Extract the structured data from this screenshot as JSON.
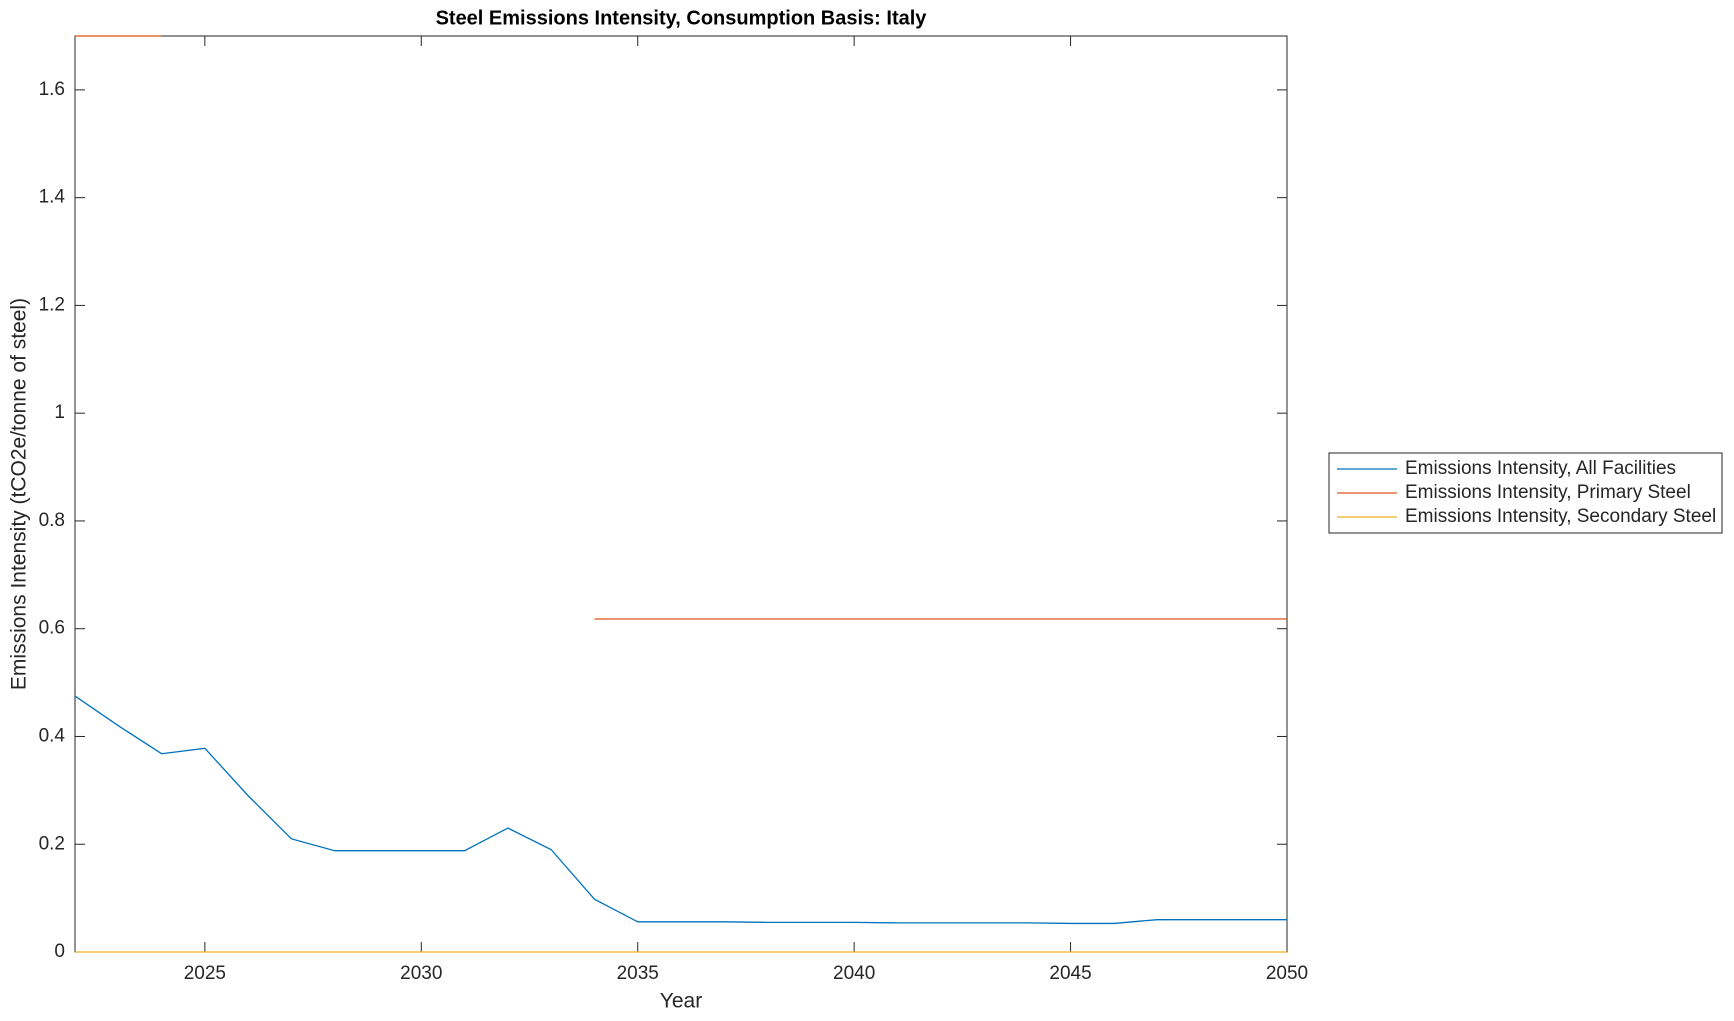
{
  "chart_data": {
    "type": "line",
    "title": "Steel Emissions Intensity, Consumption Basis: Italy",
    "x_label": "Year",
    "y_label": "Emissions Intensity (tCO2e/tonne of steel)",
    "x": [
      2022,
      2023,
      2024,
      2025,
      2026,
      2027,
      2028,
      2029,
      2030,
      2031,
      2032,
      2033,
      2034,
      2035,
      2036,
      2037,
      2038,
      2039,
      2040,
      2041,
      2042,
      2043,
      2044,
      2045,
      2046,
      2047,
      2048,
      2049,
      2050
    ],
    "series": [
      {
        "name": "Emissions Intensity, All Facilities",
        "color": "#0072BD",
        "values": [
          0.475,
          0.42,
          0.368,
          0.378,
          0.29,
          0.21,
          0.188,
          0.188,
          0.188,
          0.188,
          0.23,
          0.19,
          0.098,
          0.056,
          0.056,
          0.056,
          0.055,
          0.055,
          0.055,
          0.054,
          0.054,
          0.054,
          0.054,
          0.053,
          0.053,
          0.06,
          0.06,
          0.06,
          0.06
        ]
      },
      {
        "name": "Emissions Intensity, Primary Steel",
        "color": "#D95319",
        "values": [
          1.7,
          1.7,
          1.7,
          null,
          null,
          null,
          null,
          null,
          null,
          null,
          null,
          null,
          0.618,
          0.618,
          0.618,
          0.618,
          0.618,
          0.618,
          0.618,
          0.618,
          0.618,
          0.618,
          0.618,
          0.618,
          0.618,
          0.618,
          0.618,
          0.618,
          0.618
        ]
      },
      {
        "name": "Emissions Intensity, Secondary Steel",
        "color": "#EDB120",
        "values": [
          0,
          0,
          0,
          0,
          0,
          0,
          0,
          0,
          0,
          0,
          0,
          0,
          0,
          0,
          0,
          0,
          0,
          0,
          0,
          0,
          0,
          0,
          0,
          0,
          0,
          0,
          0,
          0,
          0
        ]
      }
    ],
    "xlim": [
      2022,
      2050
    ],
    "xticks": [
      2025,
      2030,
      2035,
      2040,
      2045,
      2050
    ],
    "ylim": [
      0,
      1.7
    ],
    "yticks": [
      0,
      0.2,
      0.4,
      0.6,
      0.8,
      1,
      1.2,
      1.4,
      1.6
    ],
    "grid": false,
    "legend": "outside right"
  }
}
